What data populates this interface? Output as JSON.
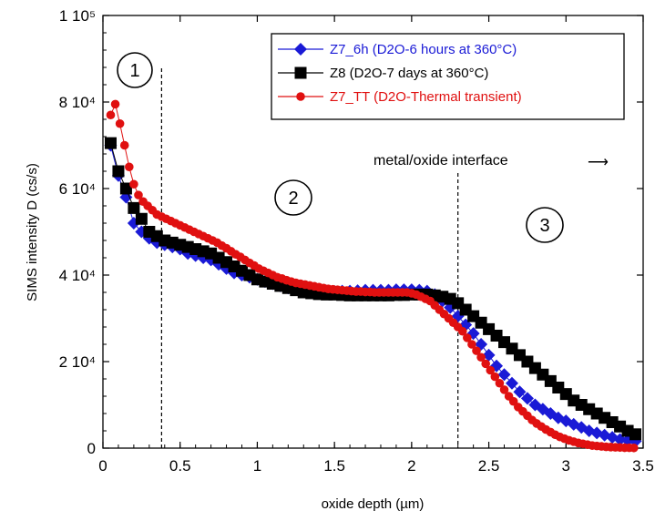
{
  "chart_data": {
    "type": "scatter",
    "xlabel": "oxide depth (µm)",
    "ylabel": "SIMS intensity D (cs/s)",
    "xlim": [
      0,
      3.5
    ],
    "ylim": [
      0,
      100000
    ],
    "x_ticks": [
      {
        "v": 0,
        "label": "0"
      },
      {
        "v": 0.5,
        "label": "0.5"
      },
      {
        "v": 1,
        "label": "1"
      },
      {
        "v": 1.5,
        "label": "1.5"
      },
      {
        "v": 2,
        "label": "2"
      },
      {
        "v": 2.5,
        "label": "2.5"
      },
      {
        "v": 3,
        "label": "3"
      },
      {
        "v": 3.5,
        "label": "3.5"
      }
    ],
    "y_ticks": [
      {
        "v": 0,
        "label": "0"
      },
      {
        "v": 20000,
        "label": "2 10⁴"
      },
      {
        "v": 40000,
        "label": "4 10⁴"
      },
      {
        "v": 60000,
        "label": "6 10⁴"
      },
      {
        "v": 80000,
        "label": "8 10⁴"
      },
      {
        "v": 100000,
        "label": "1 10⁵"
      }
    ],
    "grid": false,
    "legend_position": "top-right",
    "series": [
      {
        "name": "Z7_6h (D2O-6 hours at 360°C)",
        "color": "#1a1ad6",
        "marker": "diamond",
        "x": [
          0.05,
          0.1,
          0.15,
          0.2,
          0.25,
          0.3,
          0.35,
          0.4,
          0.45,
          0.5,
          0.55,
          0.6,
          0.65,
          0.7,
          0.75,
          0.8,
          0.85,
          0.9,
          0.95,
          1.0,
          1.05,
          1.1,
          1.15,
          1.2,
          1.25,
          1.3,
          1.35,
          1.4,
          1.45,
          1.5,
          1.55,
          1.6,
          1.65,
          1.7,
          1.75,
          1.8,
          1.85,
          1.9,
          1.95,
          2.0,
          2.05,
          2.1,
          2.15,
          2.2,
          2.25,
          2.3,
          2.35,
          2.4,
          2.45,
          2.5,
          2.55,
          2.6,
          2.65,
          2.7,
          2.75,
          2.8,
          2.85,
          2.9,
          2.95,
          3.0,
          3.05,
          3.1,
          3.15,
          3.2,
          3.25,
          3.3,
          3.35,
          3.4,
          3.45
        ],
        "y": [
          70000,
          63000,
          58000,
          52000,
          50000,
          48500,
          47500,
          47000,
          46500,
          46000,
          45000,
          44500,
          44000,
          43500,
          42500,
          41500,
          40500,
          40000,
          39500,
          39000,
          38500,
          38000,
          37500,
          37000,
          36800,
          36500,
          36500,
          36300,
          36300,
          36200,
          36300,
          36300,
          36400,
          36500,
          36500,
          36500,
          36500,
          36600,
          36600,
          36600,
          36500,
          36300,
          35500,
          34000,
          32500,
          30500,
          28500,
          26500,
          24000,
          21500,
          19000,
          17000,
          15000,
          13000,
          11500,
          10000,
          9000,
          8000,
          7000,
          6300,
          5500,
          4800,
          4000,
          3500,
          3000,
          2500,
          2000,
          1800,
          1600
        ]
      },
      {
        "name": "Z8 (D2O-7 days at 360°C)",
        "color": "#000000",
        "marker": "square",
        "x": [
          0.05,
          0.1,
          0.15,
          0.2,
          0.25,
          0.3,
          0.35,
          0.4,
          0.45,
          0.5,
          0.55,
          0.6,
          0.65,
          0.7,
          0.75,
          0.8,
          0.85,
          0.9,
          0.95,
          1.0,
          1.05,
          1.1,
          1.15,
          1.2,
          1.25,
          1.3,
          1.35,
          1.4,
          1.45,
          1.5,
          1.55,
          1.6,
          1.65,
          1.7,
          1.75,
          1.8,
          1.85,
          1.9,
          1.95,
          2.0,
          2.05,
          2.1,
          2.15,
          2.2,
          2.25,
          2.3,
          2.35,
          2.4,
          2.45,
          2.5,
          2.55,
          2.6,
          2.65,
          2.7,
          2.75,
          2.8,
          2.85,
          2.9,
          2.95,
          3.0,
          3.05,
          3.1,
          3.15,
          3.2,
          3.25,
          3.3,
          3.35,
          3.4,
          3.45
        ],
        "y": [
          70500,
          64000,
          60000,
          55500,
          53000,
          50000,
          49000,
          48000,
          47500,
          47000,
          46500,
          46000,
          45500,
          45000,
          44000,
          43000,
          42000,
          41000,
          40000,
          39000,
          38500,
          38000,
          37500,
          37000,
          36500,
          36000,
          35800,
          35600,
          35500,
          35500,
          35400,
          35300,
          35300,
          35300,
          35300,
          35300,
          35300,
          35400,
          35400,
          35500,
          35500,
          35500,
          35300,
          35000,
          34500,
          33500,
          32000,
          30500,
          29000,
          27500,
          26000,
          24500,
          23000,
          21500,
          20000,
          18500,
          17000,
          15500,
          14000,
          12500,
          11000,
          10000,
          9000,
          8000,
          7000,
          6000,
          5000,
          4000,
          3200
        ]
      },
      {
        "name": "Z7_TT (D2O-Thermal transient)",
        "color": "#e01010",
        "marker": "circle",
        "x": [
          0.05,
          0.08,
          0.11,
          0.14,
          0.17,
          0.2,
          0.23,
          0.26,
          0.29,
          0.32,
          0.35,
          0.38,
          0.41,
          0.44,
          0.47,
          0.5,
          0.53,
          0.56,
          0.59,
          0.62,
          0.65,
          0.68,
          0.71,
          0.74,
          0.77,
          0.8,
          0.83,
          0.86,
          0.89,
          0.92,
          0.95,
          0.98,
          1.01,
          1.04,
          1.07,
          1.1,
          1.13,
          1.16,
          1.19,
          1.22,
          1.25,
          1.28,
          1.31,
          1.34,
          1.37,
          1.4,
          1.43,
          1.46,
          1.49,
          1.52,
          1.55,
          1.58,
          1.61,
          1.64,
          1.67,
          1.7,
          1.73,
          1.76,
          1.79,
          1.82,
          1.85,
          1.88,
          1.91,
          1.94,
          1.97,
          2.0,
          2.03,
          2.06,
          2.09,
          2.12,
          2.15,
          2.18,
          2.21,
          2.24,
          2.27,
          2.3,
          2.33,
          2.36,
          2.39,
          2.42,
          2.45,
          2.48,
          2.51,
          2.54,
          2.57,
          2.6,
          2.63,
          2.66,
          2.69,
          2.72,
          2.75,
          2.78,
          2.81,
          2.84,
          2.87,
          2.9,
          2.93,
          2.96,
          2.99,
          3.02,
          3.05,
          3.08,
          3.11,
          3.14,
          3.17,
          3.2,
          3.23,
          3.26,
          3.29,
          3.32,
          3.35,
          3.38,
          3.41,
          3.44
        ],
        "y": [
          77000,
          79500,
          75000,
          70000,
          65000,
          61000,
          58500,
          57000,
          56000,
          55000,
          54000,
          53500,
          53000,
          52500,
          52000,
          51500,
          51000,
          50500,
          50000,
          49500,
          49000,
          48500,
          48000,
          47500,
          46800,
          46200,
          45500,
          44800,
          44200,
          43500,
          42800,
          42200,
          41500,
          41000,
          40500,
          40000,
          39500,
          39200,
          38800,
          38500,
          38200,
          38000,
          37800,
          37600,
          37400,
          37200,
          37000,
          36800,
          36700,
          36600,
          36500,
          36400,
          36300,
          36200,
          36200,
          36100,
          36100,
          36000,
          36000,
          36000,
          36000,
          36000,
          36000,
          36000,
          36000,
          35800,
          35500,
          35000,
          34500,
          34000,
          33000,
          32000,
          31000,
          30000,
          29000,
          28000,
          27000,
          25500,
          24000,
          22500,
          21000,
          19500,
          18000,
          16500,
          15000,
          13500,
          12000,
          10800,
          9500,
          8500,
          7500,
          6500,
          5700,
          5000,
          4300,
          3700,
          3100,
          2600,
          2200,
          1800,
          1500,
          1200,
          1000,
          800,
          600,
          500,
          400,
          300,
          250,
          200,
          150,
          100,
          80,
          50
        ]
      }
    ],
    "annotations": {
      "interface_label": "metal/oxide interface",
      "interface_arrow": "⟶",
      "region_1": "1",
      "region_2": "2",
      "region_3": "3",
      "dashed_lines_x": [
        0.38,
        2.3
      ]
    }
  }
}
